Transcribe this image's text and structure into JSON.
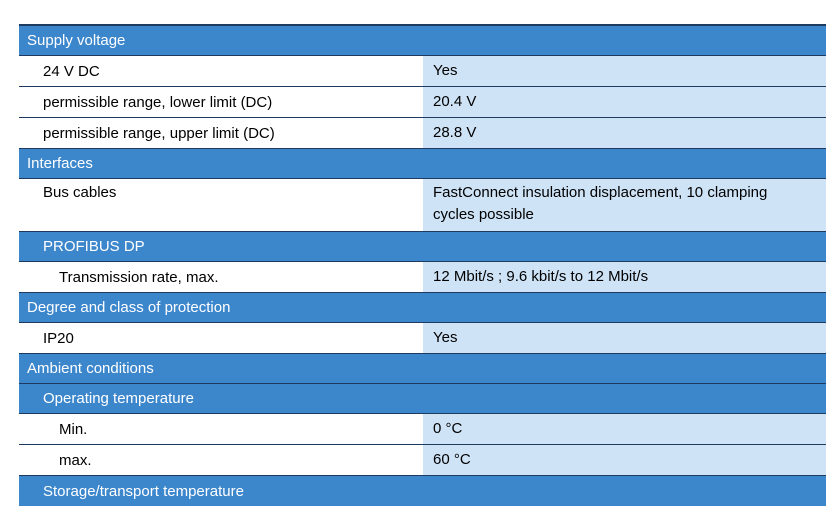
{
  "sections": {
    "supply_voltage": {
      "title": "Supply voltage",
      "rows": [
        {
          "label": "24 V DC",
          "value": "Yes"
        },
        {
          "label": "permissible range, lower limit (DC)",
          "value": "20.4 V"
        },
        {
          "label": "permissible range, upper limit (DC)",
          "value": "28.8 V"
        }
      ]
    },
    "interfaces": {
      "title": "Interfaces",
      "rows": [
        {
          "label": "Bus cables",
          "value_line1": "FastConnect insulation displacement, 10 clamping",
          "value_line2": "cycles possible"
        }
      ],
      "profibus": {
        "title": "PROFIBUS DP",
        "rows": [
          {
            "label": "Transmission rate, max.",
            "value": "12 Mbit/s ; 9.6 kbit/s to 12 Mbit/s"
          }
        ]
      }
    },
    "protection": {
      "title": "Degree and class of protection",
      "rows": [
        {
          "label": "IP20",
          "value": "Yes"
        }
      ]
    },
    "ambient": {
      "title": "Ambient conditions",
      "operating": {
        "title": "Operating temperature",
        "rows": [
          {
            "label": "Min.",
            "value": "0 °C"
          },
          {
            "label": "max.",
            "value": "60 °C"
          }
        ]
      },
      "storage": {
        "title": "Storage/transport temperature"
      }
    }
  },
  "colors": {
    "section_bg": "#3c86cc",
    "value_bg": "#cfe3f6",
    "border": "#1e3a5f"
  }
}
